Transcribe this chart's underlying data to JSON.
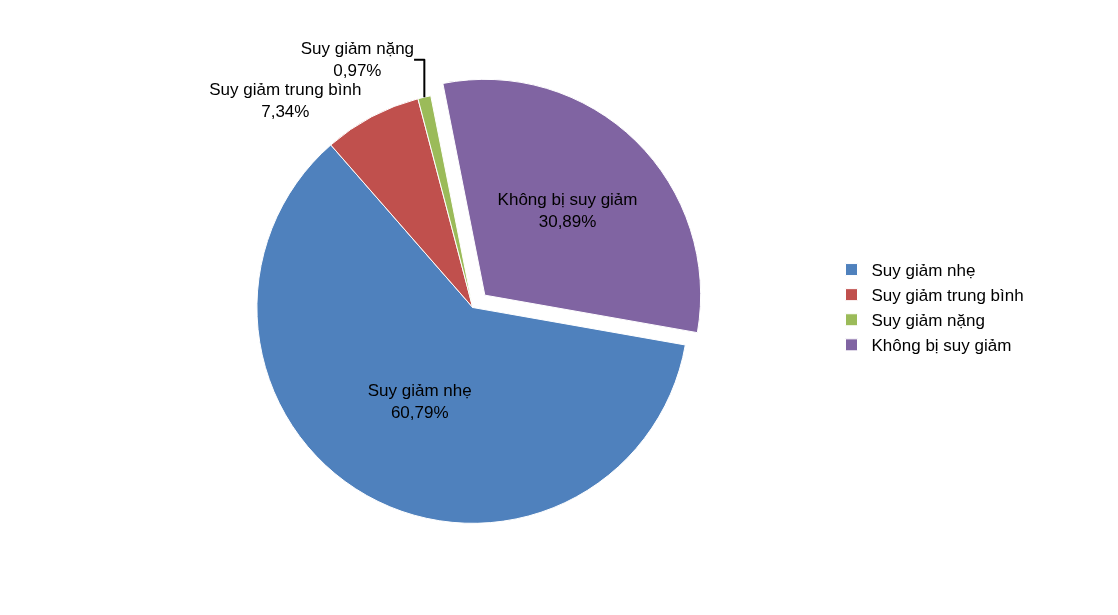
{
  "chart_data": {
    "type": "pie",
    "categories": [
      "Suy giảm nhẹ",
      "Suy giảm trung bình",
      "Suy giảm nặng",
      "Không bị suy giảm"
    ],
    "values": [
      60.79,
      7.34,
      0.97,
      30.89
    ],
    "value_labels": [
      "60,79%",
      "7,34%",
      "0,97%",
      "30,89%"
    ],
    "colors": [
      "#4f81bd",
      "#c0504d",
      "#9bbb59",
      "#8064a2"
    ],
    "legend": "right"
  }
}
